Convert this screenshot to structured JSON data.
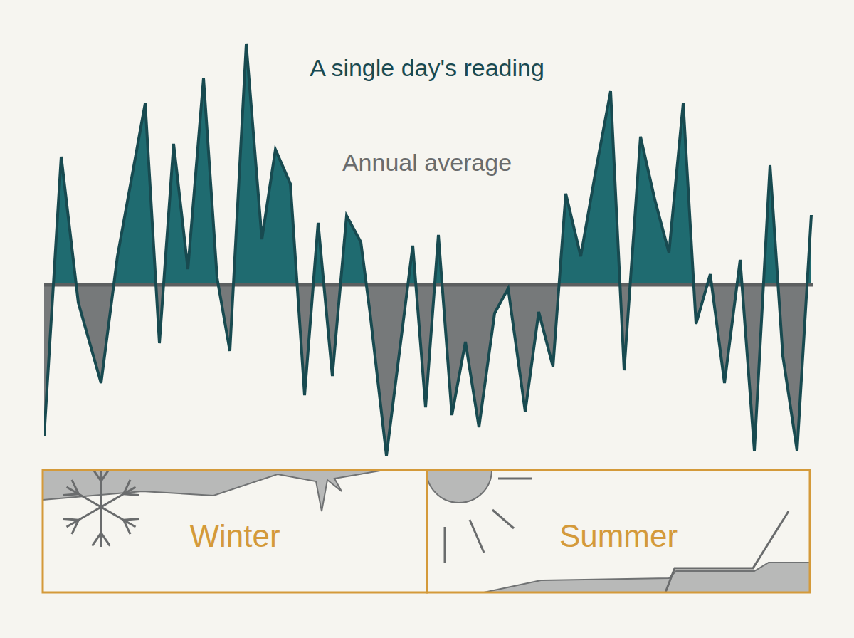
{
  "chart_data": {
    "type": "area",
    "title": "A single day's reading",
    "average_label": "Annual average",
    "seasons": [
      "Winter",
      "Summer"
    ],
    "average": 0,
    "x": [
      0,
      2.4,
      4.8,
      8,
      10.3,
      14.2,
      16.2,
      18.2,
      20.2,
      22.4,
      24.3,
      26.1,
      28.4,
      30.6,
      32.5,
      34.6,
      36.6,
      38.5,
      40.5,
      42.5,
      44.5,
      45.8,
      48.1,
      51.8,
      53.6,
      55.4,
      57.3,
      59.2,
      61.1,
      63.3,
      65.2,
      67.6,
      69.5,
      71.5,
      73.3,
      75.4,
      77.6,
      79.6,
      81.5,
      83.8,
      85.8,
      87.8,
      89.8,
      91.6,
      93.6,
      95.6,
      97.8,
      99.8,
      102,
      103.8,
      105.8,
      107.8
    ],
    "values": [
      -21.2,
      18,
      -2.5,
      -13.8,
      4,
      25.5,
      -8.2,
      19.8,
      2.2,
      29,
      1,
      -9.3,
      33.8,
      6.4,
      19,
      14.2,
      -15.5,
      8.7,
      -12.8,
      9.7,
      6,
      -4,
      -24,
      5.5,
      -17.2,
      7,
      -18.3,
      -8,
      -20,
      -4,
      -0.5,
      -17.8,
      -3.8,
      -11.5,
      12.8,
      4,
      16.5,
      27.2,
      -12,
      20.8,
      12,
      4.5,
      25.5,
      -5.5,
      1.5,
      -13.8,
      3.5,
      -23.3,
      16.8,
      -10,
      -23.3,
      9.8
    ],
    "color": "#1f6b70",
    "xlim": [
      0,
      108
    ],
    "ylim": [
      -26,
      36
    ],
    "tick_labels": false,
    "grid": false
  }
}
